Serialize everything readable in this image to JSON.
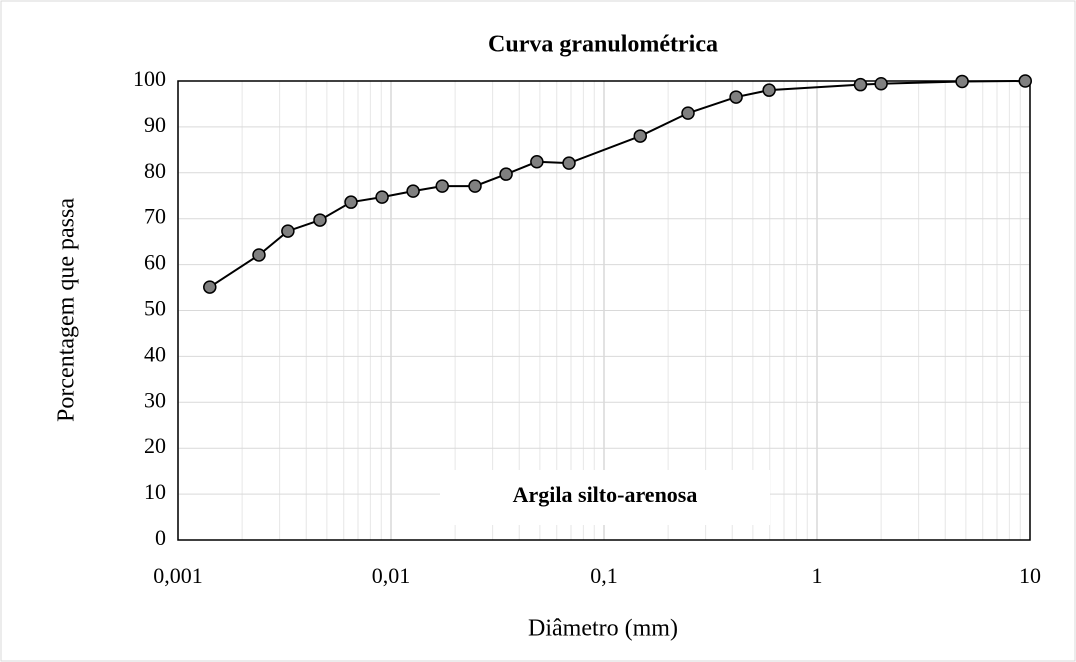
{
  "chart_data": {
    "type": "line",
    "title": "Curva granulométrica",
    "xlabel": "Diâmetro (mm)",
    "ylabel": "Porcentagem  que passa",
    "annotation": "Argila silto-arenosa",
    "x": [
      0.00141,
      0.0024,
      0.00328,
      0.00464,
      0.00649,
      0.00908,
      0.0127,
      0.0174,
      0.0248,
      0.0347,
      0.0484,
      0.0685,
      0.148,
      0.248,
      0.417,
      0.596,
      1.6,
      2.0,
      4.8,
      9.5
    ],
    "series": [
      {
        "name": "Curva",
        "color": "#000000",
        "marker_color": "#808080",
        "values": [
          55.1,
          62.1,
          67.3,
          69.7,
          73.6,
          74.7,
          76.0,
          77.1,
          77.1,
          79.7,
          82.4,
          82.1,
          88.0,
          93.0,
          96.5,
          98.0,
          99.2,
          99.4,
          99.9,
          100
        ]
      }
    ],
    "xlog": true,
    "xlim": [
      0.001,
      10
    ],
    "xticks": [
      {
        "value": 0.001,
        "label": "0,001"
      },
      {
        "value": 0.01,
        "label": "0,01"
      },
      {
        "value": 0.1,
        "label": "0,1"
      },
      1,
      10
    ],
    "ylim": [
      0,
      100
    ],
    "yticks": [
      0,
      10,
      20,
      30,
      40,
      50,
      60,
      70,
      80,
      90,
      100
    ],
    "grid": true
  }
}
